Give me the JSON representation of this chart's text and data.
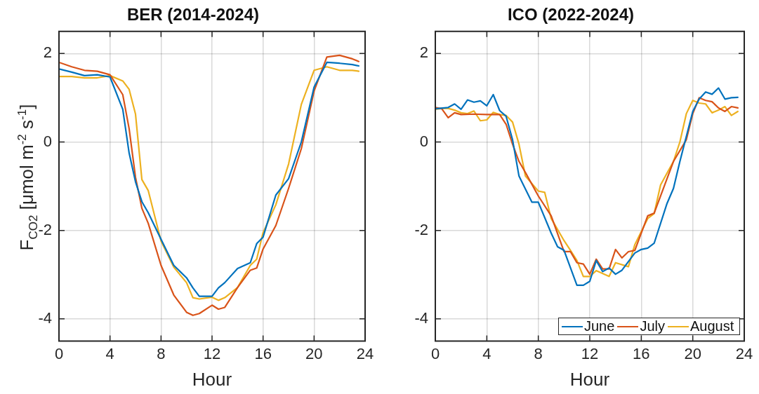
{
  "chart_data": [
    {
      "type": "line",
      "title": "BER (2014-2024)",
      "xlabel": "Hour",
      "ylabel": "F$_{CO2}$ [μmol m$^{-2}$ s$^{-1}$]",
      "x": [
        0,
        1,
        2,
        3,
        4,
        5,
        5.5,
        6,
        6.5,
        7,
        8,
        9,
        10,
        10.5,
        11,
        12,
        12.5,
        13,
        14,
        15,
        15.5,
        16,
        17,
        18,
        19,
        20,
        21,
        22,
        23,
        23.5
      ],
      "series": [
        {
          "color": "#0072bd",
          "values": [
            1.65,
            1.58,
            1.5,
            1.52,
            1.47,
            0.74,
            -0.25,
            -0.9,
            -1.35,
            -1.6,
            -2.2,
            -2.79,
            -3.07,
            -3.3,
            -3.49,
            -3.49,
            -3.3,
            -3.18,
            -2.86,
            -2.73,
            -2.3,
            -2.15,
            -1.2,
            -0.83,
            0.0,
            1.24,
            1.8,
            1.78,
            1.75,
            1.72
          ]
        },
        {
          "color": "#d95319",
          "values": [
            1.8,
            1.7,
            1.62,
            1.6,
            1.52,
            1.07,
            0.3,
            -0.8,
            -1.5,
            -1.84,
            -2.79,
            -3.46,
            -3.85,
            -3.92,
            -3.88,
            -3.69,
            -3.78,
            -3.74,
            -3.29,
            -2.9,
            -2.85,
            -2.42,
            -1.89,
            -1.05,
            -0.15,
            1.15,
            1.92,
            1.96,
            1.88,
            1.82
          ]
        },
        {
          "color": "#edb120",
          "values": [
            1.48,
            1.48,
            1.45,
            1.45,
            1.5,
            1.38,
            1.19,
            0.63,
            -0.85,
            -1.1,
            -2.24,
            -2.83,
            -3.18,
            -3.52,
            -3.55,
            -3.51,
            -3.58,
            -3.52,
            -3.29,
            -2.79,
            -2.65,
            -2.05,
            -1.42,
            -0.5,
            0.85,
            1.62,
            1.7,
            1.62,
            1.62,
            1.6
          ]
        }
      ],
      "xlim": [
        0,
        24
      ],
      "xticks": [
        0,
        4,
        8,
        12,
        16,
        20,
        24
      ],
      "ylim": [
        -4.5,
        2.5
      ],
      "yticks": [
        -4,
        -2,
        0,
        2
      ],
      "grid": true,
      "legend": false,
      "marker": "none",
      "line_style": "solid"
    },
    {
      "type": "line",
      "title": "ICO (2022-2024)",
      "xlabel": "Hour",
      "series": [
        {
          "name": "June",
          "color": "#0072bd",
          "x": [
            0,
            1,
            1.5,
            2,
            2.5,
            3,
            3.5,
            4,
            4.5,
            5,
            5.5,
            6,
            6.5,
            7.5,
            8,
            9,
            9.5,
            10,
            11,
            11.5,
            12,
            12.5,
            13,
            13.5,
            14,
            14.5,
            15.5,
            16,
            16.5,
            17,
            18,
            18.5,
            19,
            20,
            20.5,
            21,
            21.5,
            22,
            22.5,
            23,
            23.5
          ],
          "values": [
            0.75,
            0.78,
            0.86,
            0.74,
            0.95,
            0.9,
            0.93,
            0.82,
            1.07,
            0.71,
            0.58,
            0.05,
            -0.77,
            -1.36,
            -1.36,
            -2.06,
            -2.37,
            -2.45,
            -3.24,
            -3.24,
            -3.15,
            -2.68,
            -2.93,
            -2.85,
            -2.99,
            -2.9,
            -2.51,
            -2.43,
            -2.4,
            -2.29,
            -1.39,
            -1.05,
            -0.44,
            0.69,
            0.97,
            1.13,
            1.08,
            1.22,
            0.97,
            1.0,
            1.01
          ]
        },
        {
          "name": "July",
          "color": "#d95319",
          "x": [
            0,
            0.5,
            1,
            1.5,
            2,
            3,
            4,
            5,
            5.5,
            6,
            6.5,
            7,
            8,
            9,
            10,
            10.5,
            11,
            11.5,
            12,
            12.5,
            13,
            13.5,
            14,
            14.5,
            15,
            15.5,
            16.5,
            17,
            18,
            18.5,
            19.5,
            20,
            20.5,
            21,
            21.5,
            22,
            22.5,
            23,
            23.5
          ],
          "values": [
            0.78,
            0.75,
            0.55,
            0.66,
            0.62,
            0.63,
            0.62,
            0.62,
            0.4,
            -0.05,
            -0.44,
            -0.69,
            -1.22,
            -1.67,
            -2.48,
            -2.48,
            -2.73,
            -2.76,
            -2.99,
            -2.65,
            -2.87,
            -2.87,
            -2.43,
            -2.62,
            -2.48,
            -2.45,
            -1.67,
            -1.61,
            -0.83,
            -0.44,
            0.05,
            0.64,
            1.0,
            0.94,
            0.91,
            0.77,
            0.69,
            0.8,
            0.77
          ]
        },
        {
          "name": "August",
          "color": "#edb120",
          "x": [
            0,
            0.5,
            1,
            1.5,
            2,
            2.5,
            3,
            3.5,
            4,
            4.5,
            5,
            5.5,
            6,
            6.5,
            7,
            8,
            8.5,
            9,
            10,
            10.5,
            11,
            11.5,
            12,
            12.5,
            13.5,
            14,
            15,
            15.5,
            16.5,
            17,
            17.5,
            18.5,
            19,
            19.5,
            20,
            20.5,
            21,
            21.5,
            22,
            22.5,
            23,
            23.5
          ],
          "values": [
            0.74,
            0.76,
            0.76,
            0.72,
            0.66,
            0.64,
            0.7,
            0.48,
            0.5,
            0.67,
            0.62,
            0.6,
            0.45,
            -0.05,
            -0.77,
            -1.11,
            -1.14,
            -1.73,
            -2.23,
            -2.45,
            -2.68,
            -3.04,
            -3.04,
            -2.91,
            -3.04,
            -2.73,
            -2.82,
            -2.32,
            -1.73,
            -1.62,
            -0.97,
            -0.44,
            0.0,
            0.64,
            0.94,
            0.88,
            0.86,
            0.66,
            0.72,
            0.8,
            0.6,
            0.69
          ]
        }
      ],
      "xlim": [
        0,
        24
      ],
      "xticks": [
        0,
        4,
        8,
        12,
        16,
        20,
        24
      ],
      "ylim": [
        -4.5,
        2.5
      ],
      "yticks": [
        -4,
        -2,
        0,
        2
      ],
      "grid": true,
      "legend": "bottom right",
      "marker": "none",
      "line_style": "solid"
    }
  ]
}
